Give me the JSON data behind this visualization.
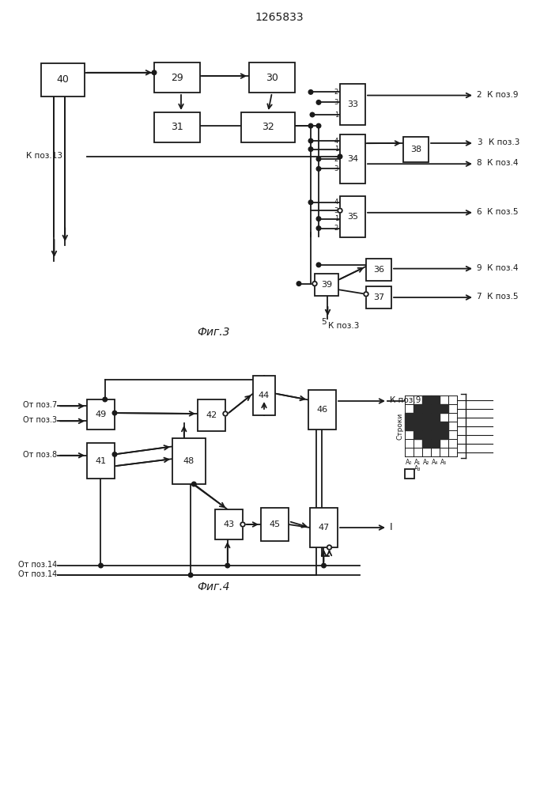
{
  "title": "1265833",
  "fig3_label": "Фиг.3",
  "fig4_label": "Фиг.4",
  "bg_color": "#ffffff",
  "line_color": "#1a1a1a",
  "box_color": "#ffffff"
}
